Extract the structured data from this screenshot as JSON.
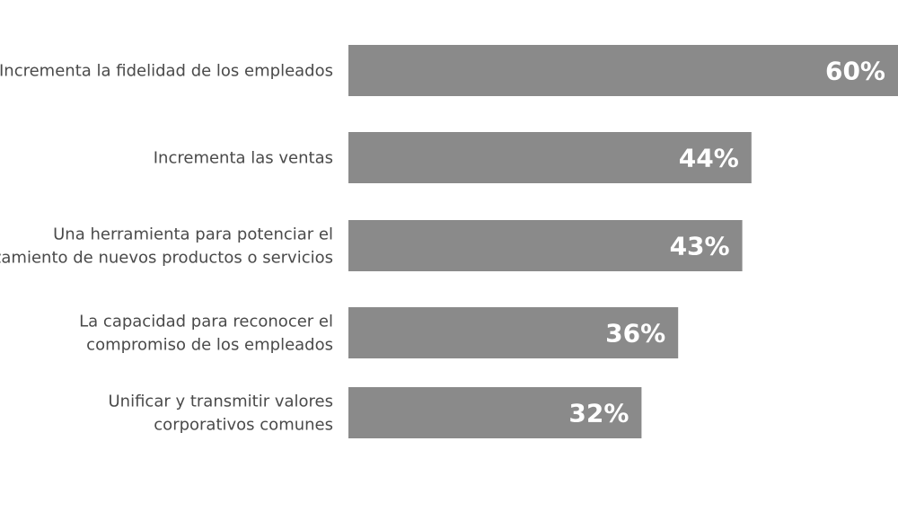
{
  "chart_data": {
    "type": "bar",
    "orientation": "horizontal",
    "categories": [
      [
        "Incrementa la fidelidad de los empleados"
      ],
      [
        "Incrementa las ventas"
      ],
      [
        "Una herramienta para potenciar el",
        "lanzamiento de nuevos productos o servicios"
      ],
      [
        "La capacidad para reconocer el",
        "compromiso de los empleados"
      ],
      [
        "Unificar y transmitir valores",
        "corporativos comunes"
      ]
    ],
    "values": [
      60,
      44,
      43,
      36,
      32
    ],
    "value_labels": [
      "60%",
      "44%",
      "43%",
      "36%",
      "32%"
    ],
    "xlim": [
      0,
      60
    ],
    "bar_color": "#8a8a8a",
    "value_label_color": "#ffffff",
    "grid": false,
    "legend": "none"
  }
}
